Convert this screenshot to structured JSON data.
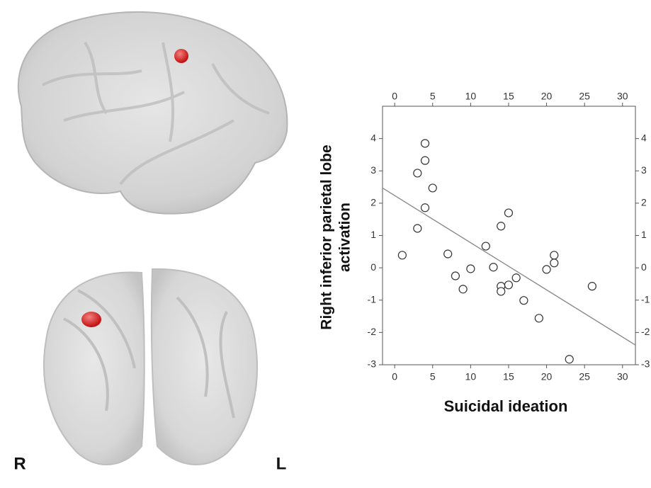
{
  "chart_data": {
    "type": "scatter",
    "x_label": "Suicidal ideation",
    "y_label": [
      "Right inferior parietal lobe",
      "activation"
    ],
    "annotations": [
      "R",
      "L"
    ],
    "series": [
      {
        "color": "#333333",
        "x": [
          1,
          3,
          4,
          4,
          5,
          4,
          3,
          7,
          8,
          9,
          10,
          12,
          13,
          14,
          14,
          14,
          15,
          15,
          16,
          17,
          19,
          20,
          21,
          21,
          23,
          26
        ],
        "values": [
          0.39,
          2.93,
          3.85,
          3.32,
          2.47,
          1.86,
          1.22,
          0.43,
          -0.25,
          -0.66,
          -0.03,
          0.67,
          0.02,
          -0.57,
          -0.73,
          1.29,
          1.7,
          -0.53,
          -0.31,
          -1.01,
          -1.56,
          -0.05,
          0.39,
          0.15,
          -2.83,
          -0.57
        ]
      }
    ],
    "fit_line": {
      "color": "#888888",
      "x": [
        -1.6,
        31.7
      ],
      "values": [
        2.47,
        -2.39
      ]
    },
    "xlim": [
      -1.6,
      31.7
    ],
    "ylim": [
      -3,
      5
    ],
    "xticks": [
      0,
      5,
      10,
      15,
      20,
      25,
      30
    ],
    "yticks": [
      -3,
      -2,
      -1,
      0,
      1,
      2,
      3,
      4
    ]
  }
}
